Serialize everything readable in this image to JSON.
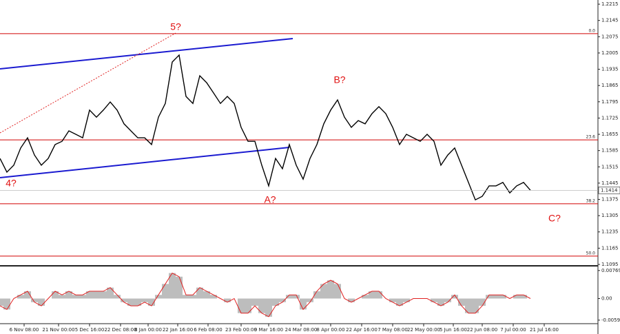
{
  "chart_data": [
    {
      "type": "line",
      "ylim": [
        1.1092,
        1.2233
      ],
      "xlim": [
        0,
        86.8
      ],
      "yticks": [
        1.2215,
        1.2145,
        1.2075,
        1.2005,
        1.1935,
        1.1865,
        1.1795,
        1.1725,
        1.1655,
        1.1585,
        1.1515,
        1.1445,
        1.1375,
        1.1305,
        1.1235,
        1.1165,
        1.1095
      ],
      "xticks": [
        {
          "value": 3.5,
          "label": "6 Nov 08:00"
        },
        {
          "value": 8.5,
          "label": "21 Nov 00:00"
        },
        {
          "value": 13,
          "label": "5 Dec 16:00"
        },
        {
          "value": 17.5,
          "label": "22 Dec 08:00"
        },
        {
          "value": 21.5,
          "label": "8 Jan 00:00"
        },
        {
          "value": 25.8,
          "label": "22 Jan 16:00"
        },
        {
          "value": 30.2,
          "label": "6 Feb 08:00"
        },
        {
          "value": 35,
          "label": "23 Feb 00:00"
        },
        {
          "value": 39,
          "label": "9 Mar 16:00"
        },
        {
          "value": 43.7,
          "label": "24 Mar 08:00"
        },
        {
          "value": 48,
          "label": "8 Apr 00:00"
        },
        {
          "value": 52.5,
          "label": "22 Apr 16:00"
        },
        {
          "value": 57,
          "label": "7 May 08:00"
        },
        {
          "value": 61.5,
          "label": "22 May 00:00"
        },
        {
          "value": 65.8,
          "label": "5 Jun 16:00"
        },
        {
          "value": 70,
          "label": "22 Jun 08:00"
        },
        {
          "value": 74.5,
          "label": "7 Jul 00:00"
        },
        {
          "value": 79,
          "label": "21 Jul 16:00"
        }
      ],
      "series": [
        {
          "color": "#000000",
          "values": [
            1.1551,
            1.1492,
            1.1522,
            1.1596,
            1.164,
            1.1566,
            1.1522,
            1.1551,
            1.1611,
            1.1625,
            1.167,
            1.1655,
            1.164,
            1.1759,
            1.1729,
            1.1759,
            1.1794,
            1.1759,
            1.17,
            1.167,
            1.164,
            1.164,
            1.1611,
            1.1729,
            1.1788,
            1.1966,
            1.1996,
            1.1818,
            1.1788,
            1.1907,
            1.1877,
            1.1833,
            1.1788,
            1.1818,
            1.1788,
            1.1685,
            1.1625,
            1.1625,
            1.1522,
            1.1433,
            1.1551,
            1.1507,
            1.1611,
            1.1522,
            1.1462,
            1.1551,
            1.1611,
            1.17,
            1.1759,
            1.1803,
            1.1729,
            1.1685,
            1.1714,
            1.17,
            1.1744,
            1.1774,
            1.1744,
            1.1685,
            1.1611,
            1.1655,
            1.164,
            1.1625,
            1.1655,
            1.1625,
            1.1522,
            1.1566,
            1.1596,
            1.1522,
            1.1448,
            1.1373,
            1.1388,
            1.1433,
            1.1433,
            1.1448,
            1.1403,
            1.1433,
            1.1448,
            1.1414
          ]
        }
      ],
      "levels": [
        {
          "label": "0.0",
          "value": 1.2088
        },
        {
          "label": "23.6",
          "value": 1.1631
        },
        {
          "label": "38.2",
          "value": 1.1356
        },
        {
          "label": "50.0",
          "value": 1.1131
        }
      ],
      "level_color": "#d00000",
      "last_price": 1.1414,
      "annotations": [
        "5?",
        "4?",
        "A?",
        "B?",
        "C?"
      ]
    },
    {
      "type": "bar",
      "ylim": [
        -0.0069,
        0.0086
      ],
      "yticks": [
        0.00769,
        {
          "value": 0,
          "label": "0.00"
        },
        -0.00593
      ],
      "series": [
        {
          "color": "#bdbdbd",
          "line_color": "#e02020",
          "values": [
            -0.002,
            -0.003,
            0,
            0.001,
            0.002,
            -0.001,
            -0.002,
            0,
            0.002,
            0.001,
            0.002,
            0.001,
            0.001,
            0.002,
            0.002,
            0.002,
            0.003,
            0.001,
            -0.001,
            -0.002,
            -0.002,
            -0.001,
            -0.002,
            0.001,
            0.004,
            0.007,
            0.006,
            0.001,
            0.001,
            0.003,
            0.002,
            0.001,
            0,
            -0.001,
            0,
            -0.004,
            -0.004,
            -0.002,
            -0.004,
            -0.005,
            -0.002,
            -0.001,
            0.001,
            0.001,
            -0.003,
            -0.001,
            0.002,
            0.004,
            0.005,
            0.004,
            0,
            -0.001,
            0,
            0.001,
            0.002,
            0.002,
            0,
            -0.001,
            -0.002,
            -0.001,
            0,
            0,
            0,
            -0.001,
            -0.002,
            -0.001,
            0.001,
            -0.002,
            -0.004,
            -0.004,
            -0.002,
            0.001,
            0.001,
            0.001,
            0,
            0.001,
            0.001,
            0
          ]
        }
      ]
    }
  ]
}
